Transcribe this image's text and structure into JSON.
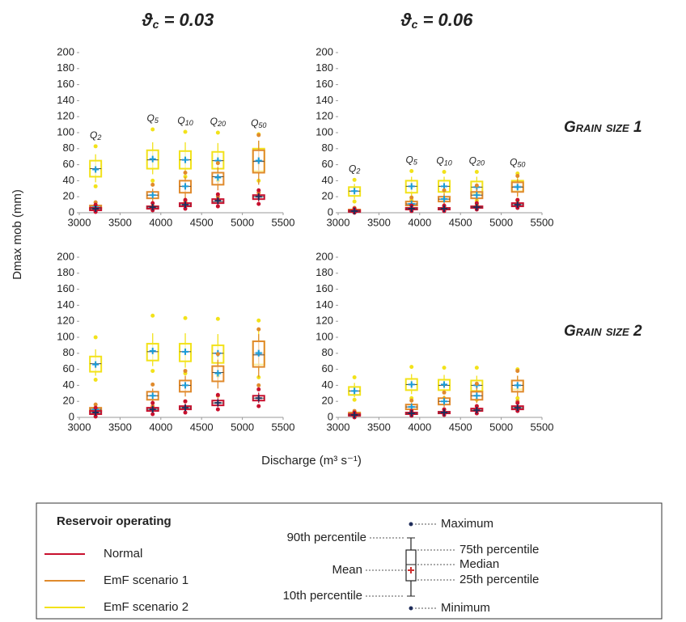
{
  "column_titles": [
    {
      "symbol": "ϑ",
      "subscript": "c",
      "value_text": " = 0.03"
    },
    {
      "symbol": "ϑ",
      "subscript": "c",
      "value_text": " = 0.06"
    }
  ],
  "row_labels": [
    "Grain size 1",
    "Grain size 2"
  ],
  "y_label": "Dmax mob (mm)",
  "x_label": "Discharge (m³ s⁻¹)",
  "legend": {
    "title": "Reservoir operating",
    "entries": [
      {
        "name": "Normal",
        "color": "#c8102e"
      },
      {
        "name": "EmF scenario 1",
        "color": "#e08a2c"
      },
      {
        "name": "EmF scenario 2",
        "color": "#f2e21a"
      }
    ],
    "diagram": {
      "maximum": "Maximum",
      "p90": "90th percentile",
      "q3": "75th percentile",
      "median": "Median",
      "mean": "Mean",
      "q1": "25th percentile",
      "p10": "10th percentile",
      "minimum": "Minimum"
    }
  },
  "chart_data": [
    {
      "type": "box",
      "x": [
        3200,
        3900,
        4300,
        4700,
        5200
      ],
      "xlim": [
        3000,
        5500
      ],
      "xticks": [
        3000,
        3500,
        4000,
        4500,
        5000,
        5500
      ],
      "ylim": [
        0,
        200
      ],
      "yticks": [
        0,
        20,
        40,
        60,
        80,
        100,
        120,
        140,
        160,
        180,
        200
      ],
      "annotations": [
        {
          "text": "Q",
          "sub": "2"
        },
        {
          "text": "Q",
          "sub": "5"
        },
        {
          "text": "Q",
          "sub": "10"
        },
        {
          "text": "Q",
          "sub": "20"
        },
        {
          "text": "Q",
          "sub": "50"
        }
      ],
      "series": [
        {
          "boxes": [
            {
              "min": 1,
              "p10": 2,
              "q1": 3,
              "median": 5,
              "q3": 6,
              "p90": 8,
              "max": 10,
              "mean": 5
            },
            {
              "min": 3,
              "p10": 4,
              "q1": 5,
              "median": 7,
              "q3": 8,
              "p90": 10,
              "max": 12,
              "mean": 7
            },
            {
              "min": 5,
              "p10": 6,
              "q1": 8,
              "median": 10,
              "q3": 12,
              "p90": 14,
              "max": 16,
              "mean": 10
            },
            {
              "min": 8,
              "p10": 10,
              "q1": 12,
              "median": 14,
              "q3": 17,
              "p90": 20,
              "max": 23,
              "mean": 15
            },
            {
              "min": 11,
              "p10": 14,
              "q1": 17,
              "median": 20,
              "q3": 22,
              "p90": 25,
              "max": 28,
              "mean": 20
            }
          ]
        },
        {
          "boxes": [
            {
              "min": 2,
              "p10": 3,
              "q1": 5,
              "median": 7,
              "q3": 9,
              "p90": 11,
              "max": 13,
              "mean": 7
            },
            {
              "min": 8,
              "p10": 12,
              "q1": 18,
              "median": 22,
              "q3": 26,
              "p90": 30,
              "max": 35,
              "mean": 22
            },
            {
              "min": 14,
              "p10": 18,
              "q1": 25,
              "median": 33,
              "q3": 40,
              "p90": 45,
              "max": 50,
              "mean": 33
            },
            {
              "min": 20,
              "p10": 28,
              "q1": 35,
              "median": 45,
              "q3": 50,
              "p90": 57,
              "max": 62,
              "mean": 44
            },
            {
              "min": 25,
              "p10": 35,
              "q1": 50,
              "median": 64,
              "q3": 78,
              "p90": 90,
              "max": 97,
              "mean": 65
            }
          ]
        },
        {
          "boxes": [
            {
              "min": 33,
              "p10": 38,
              "q1": 45,
              "median": 55,
              "q3": 65,
              "p90": 73,
              "max": 83,
              "mean": 54
            },
            {
              "min": 40,
              "p10": 48,
              "q1": 55,
              "median": 66,
              "q3": 78,
              "p90": 88,
              "max": 104,
              "mean": 67
            },
            {
              "min": 45,
              "p10": 50,
              "q1": 55,
              "median": 66,
              "q3": 77,
              "p90": 88,
              "max": 101,
              "mean": 66
            },
            {
              "min": 40,
              "p10": 48,
              "q1": 55,
              "median": 65,
              "q3": 76,
              "p90": 87,
              "max": 100,
              "mean": 65
            },
            {
              "min": 40,
              "p10": 48,
              "q1": 52,
              "median": 65,
              "q3": 80,
              "p90": 90,
              "max": 98,
              "mean": 65
            }
          ]
        }
      ]
    },
    {
      "type": "box",
      "x": [
        3200,
        3900,
        4300,
        4700,
        5200
      ],
      "xlim": [
        3000,
        5500
      ],
      "xticks": [
        3000,
        3500,
        4000,
        4500,
        5000,
        5500
      ],
      "ylim": [
        0,
        200
      ],
      "yticks": [
        0,
        20,
        40,
        60,
        80,
        100,
        120,
        140,
        160,
        180,
        200
      ],
      "annotations": [
        {
          "text": "Q",
          "sub": "2"
        },
        {
          "text": "Q",
          "sub": "5"
        },
        {
          "text": "Q",
          "sub": "10"
        },
        {
          "text": "Q",
          "sub": "20"
        },
        {
          "text": "Q",
          "sub": "50"
        }
      ],
      "series": [
        {
          "boxes": [
            {
              "min": 0,
              "p10": 1,
              "q1": 1,
              "median": 2,
              "q3": 3,
              "p90": 4,
              "max": 5,
              "mean": 2
            },
            {
              "min": 2,
              "p10": 3,
              "q1": 4,
              "median": 5,
              "q3": 6,
              "p90": 7,
              "max": 9,
              "mean": 5
            },
            {
              "min": 2,
              "p10": 3,
              "q1": 4,
              "median": 5,
              "q3": 6,
              "p90": 7,
              "max": 9,
              "mean": 5
            },
            {
              "min": 4,
              "p10": 5,
              "q1": 6,
              "median": 7,
              "q3": 8,
              "p90": 10,
              "max": 12,
              "mean": 7
            },
            {
              "min": 6,
              "p10": 7,
              "q1": 8,
              "median": 10,
              "q3": 12,
              "p90": 14,
              "max": 16,
              "mean": 10
            }
          ]
        },
        {
          "boxes": [
            {
              "min": 1,
              "p10": 1,
              "q1": 2,
              "median": 3,
              "q3": 4,
              "p90": 5,
              "max": 6,
              "mean": 3
            },
            {
              "min": 4,
              "p10": 6,
              "q1": 9,
              "median": 11,
              "q3": 14,
              "p90": 16,
              "max": 19,
              "mean": 11
            },
            {
              "min": 8,
              "p10": 10,
              "q1": 14,
              "median": 17,
              "q3": 20,
              "p90": 24,
              "max": 28,
              "mean": 17
            },
            {
              "min": 10,
              "p10": 14,
              "q1": 18,
              "median": 22,
              "q3": 26,
              "p90": 30,
              "max": 34,
              "mean": 22
            },
            {
              "min": 15,
              "p10": 20,
              "q1": 26,
              "median": 32,
              "q3": 38,
              "p90": 42,
              "max": 46,
              "mean": 32
            }
          ]
        },
        {
          "boxes": [
            {
              "min": 14,
              "p10": 17,
              "q1": 21,
              "median": 27,
              "q3": 32,
              "p90": 36,
              "max": 41,
              "mean": 27
            },
            {
              "min": 16,
              "p10": 20,
              "q1": 25,
              "median": 33,
              "q3": 40,
              "p90": 45,
              "max": 52,
              "mean": 33
            },
            {
              "min": 17,
              "p10": 21,
              "q1": 26,
              "median": 33,
              "q3": 40,
              "p90": 45,
              "max": 51,
              "mean": 33
            },
            {
              "min": 15,
              "p10": 19,
              "q1": 24,
              "median": 32,
              "q3": 39,
              "p90": 45,
              "max": 51,
              "mean": 32
            },
            {
              "min": 16,
              "p10": 20,
              "q1": 27,
              "median": 33,
              "q3": 40,
              "p90": 44,
              "max": 49,
              "mean": 33
            }
          ]
        }
      ]
    },
    {
      "type": "box",
      "x": [
        3200,
        3900,
        4300,
        4700,
        5200
      ],
      "xlim": [
        3000,
        5500
      ],
      "xticks": [
        3000,
        3500,
        4000,
        4500,
        5000,
        5500
      ],
      "ylim": [
        0,
        200
      ],
      "yticks": [
        0,
        20,
        40,
        60,
        80,
        100,
        120,
        140,
        160,
        180,
        200
      ],
      "series": [
        {
          "boxes": [
            {
              "min": 1,
              "p10": 2,
              "q1": 4,
              "median": 6,
              "q3": 8,
              "p90": 10,
              "max": 12,
              "mean": 6
            },
            {
              "min": 4,
              "p10": 6,
              "q1": 8,
              "median": 10,
              "q3": 12,
              "p90": 15,
              "max": 18,
              "mean": 10
            },
            {
              "min": 6,
              "p10": 8,
              "q1": 10,
              "median": 12,
              "q3": 14,
              "p90": 17,
              "max": 20,
              "mean": 12
            },
            {
              "min": 10,
              "p10": 13,
              "q1": 15,
              "median": 18,
              "q3": 21,
              "p90": 24,
              "max": 28,
              "mean": 18
            },
            {
              "min": 14,
              "p10": 18,
              "q1": 21,
              "median": 24,
              "q3": 27,
              "p90": 31,
              "max": 35,
              "mean": 24
            }
          ]
        },
        {
          "boxes": [
            {
              "min": 4,
              "p10": 6,
              "q1": 8,
              "median": 10,
              "q3": 12,
              "p90": 14,
              "max": 16,
              "mean": 10
            },
            {
              "min": 14,
              "p10": 18,
              "q1": 22,
              "median": 27,
              "q3": 32,
              "p90": 36,
              "max": 41,
              "mean": 27
            },
            {
              "min": 20,
              "p10": 26,
              "q1": 32,
              "median": 40,
              "q3": 46,
              "p90": 52,
              "max": 58,
              "mean": 40
            },
            {
              "min": 27,
              "p10": 36,
              "q1": 45,
              "median": 56,
              "q3": 64,
              "p90": 72,
              "max": 79,
              "mean": 55
            },
            {
              "min": 40,
              "p10": 50,
              "q1": 63,
              "median": 78,
              "q3": 95,
              "p90": 104,
              "max": 110,
              "mean": 80
            }
          ]
        },
        {
          "boxes": [
            {
              "min": 47,
              "p10": 52,
              "q1": 57,
              "median": 67,
              "q3": 76,
              "p90": 85,
              "max": 100,
              "mean": 66
            },
            {
              "min": 58,
              "p10": 64,
              "q1": 71,
              "median": 82,
              "q3": 92,
              "p90": 105,
              "max": 127,
              "mean": 83
            },
            {
              "min": 55,
              "p10": 62,
              "q1": 70,
              "median": 82,
              "q3": 92,
              "p90": 105,
              "max": 124,
              "mean": 82
            },
            {
              "min": 52,
              "p10": 60,
              "q1": 68,
              "median": 80,
              "q3": 90,
              "p90": 104,
              "max": 123,
              "mean": 80
            },
            {
              "min": 50,
              "p10": 58,
              "q1": 66,
              "median": 80,
              "q3": 95,
              "p90": 108,
              "max": 121,
              "mean": 81
            }
          ]
        }
      ]
    },
    {
      "type": "box",
      "x": [
        3200,
        3900,
        4300,
        4700,
        5200
      ],
      "xlim": [
        3000,
        5500
      ],
      "xticks": [
        3000,
        3500,
        4000,
        4500,
        5000,
        5500
      ],
      "ylim": [
        0,
        200
      ],
      "yticks": [
        0,
        20,
        40,
        60,
        80,
        100,
        120,
        140,
        160,
        180,
        200
      ],
      "series": [
        {
          "boxes": [
            {
              "min": 0,
              "p10": 1,
              "q1": 2,
              "median": 3,
              "q3": 4,
              "p90": 5,
              "max": 6,
              "mean": 3
            },
            {
              "min": 2,
              "p10": 3,
              "q1": 4,
              "median": 5,
              "q3": 6,
              "p90": 7,
              "max": 8,
              "mean": 5
            },
            {
              "min": 3,
              "p10": 4,
              "q1": 5,
              "median": 6,
              "q3": 7,
              "p90": 8,
              "max": 10,
              "mean": 6
            },
            {
              "min": 5,
              "p10": 6,
              "q1": 8,
              "median": 9,
              "q3": 11,
              "p90": 12,
              "max": 14,
              "mean": 9
            },
            {
              "min": 8,
              "p10": 9,
              "q1": 10,
              "median": 12,
              "q3": 14,
              "p90": 16,
              "max": 18,
              "mean": 12
            }
          ]
        },
        {
          "boxes": [
            {
              "min": 1,
              "p10": 2,
              "q1": 3,
              "median": 4,
              "q3": 6,
              "p90": 7,
              "max": 8,
              "mean": 4
            },
            {
              "min": 6,
              "p10": 8,
              "q1": 10,
              "median": 13,
              "q3": 16,
              "p90": 18,
              "max": 21,
              "mean": 13
            },
            {
              "min": 10,
              "p10": 13,
              "q1": 16,
              "median": 20,
              "q3": 24,
              "p90": 27,
              "max": 31,
              "mean": 20
            },
            {
              "min": 14,
              "p10": 18,
              "q1": 22,
              "median": 27,
              "q3": 32,
              "p90": 37,
              "max": 42,
              "mean": 27
            },
            {
              "min": 20,
              "p10": 26,
              "q1": 32,
              "median": 40,
              "q3": 46,
              "p90": 52,
              "max": 58,
              "mean": 40
            }
          ]
        },
        {
          "boxes": [
            {
              "min": 22,
              "p10": 25,
              "q1": 28,
              "median": 33,
              "q3": 38,
              "p90": 43,
              "max": 50,
              "mean": 33
            },
            {
              "min": 24,
              "p10": 29,
              "q1": 34,
              "median": 41,
              "q3": 48,
              "p90": 54,
              "max": 63,
              "mean": 41
            },
            {
              "min": 24,
              "p10": 29,
              "q1": 34,
              "median": 40,
              "q3": 47,
              "p90": 53,
              "max": 62,
              "mean": 41
            },
            {
              "min": 22,
              "p10": 27,
              "q1": 33,
              "median": 40,
              "q3": 46,
              "p90": 52,
              "max": 62,
              "mean": 40
            },
            {
              "min": 24,
              "p10": 29,
              "q1": 35,
              "median": 40,
              "q3": 46,
              "p90": 52,
              "max": 60,
              "mean": 40
            }
          ]
        }
      ]
    }
  ]
}
